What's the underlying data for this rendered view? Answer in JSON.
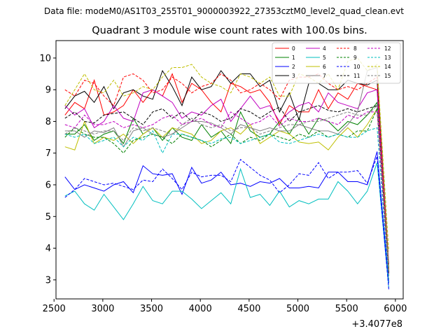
{
  "chart_data": {
    "type": "line",
    "suptitle": "Data file: modeM0/AS1T03_255T01_9000003922_27353cztM0_level2_quad_clean.evt",
    "title": "Quadrant 3 module wise count rates with 100.0s bins.",
    "xlabel": "",
    "ylabel": "",
    "x_offset_label": "+3.4077e8",
    "xlim": [
      2520,
      6080
    ],
    "ylim": [
      2.4,
      10.55
    ],
    "x_ticks": [
      2500,
      3000,
      3500,
      4000,
      4500,
      5000,
      5500,
      6000
    ],
    "y_ticks": [
      3,
      4,
      5,
      6,
      7,
      8,
      9,
      10
    ],
    "x_tick_labels": [
      "2500",
      "3000",
      "3500",
      "4000",
      "4500",
      "5000",
      "5500",
      "6000"
    ],
    "y_tick_labels": [
      "3",
      "4",
      "5",
      "6",
      "7",
      "8",
      "9",
      "10"
    ],
    "legend_position": "top-right",
    "x": [
      2612,
      2712,
      2812,
      2912,
      3012,
      3112,
      3212,
      3312,
      3412,
      3512,
      3612,
      3712,
      3812,
      3912,
      4012,
      4112,
      4212,
      4312,
      4412,
      4512,
      4612,
      4712,
      4812,
      4912,
      5012,
      5112,
      5212,
      5312,
      5412,
      5512,
      5612,
      5712,
      5812,
      5932
    ],
    "series": [
      {
        "name": "0",
        "color": "#ff0000",
        "dash": "solid",
        "values": [
          8.2,
          8.6,
          8.4,
          9.3,
          8.2,
          8.3,
          8.5,
          9.0,
          8.6,
          9.0,
          8.8,
          9.5,
          8.6,
          9.2,
          9.0,
          8.6,
          8.3,
          9.2,
          9.1,
          8.9,
          9.0,
          8.6,
          7.9,
          8.5,
          8.3,
          8.3,
          9.0,
          8.4,
          8.9,
          8.7,
          9.2,
          9.1,
          9.0,
          3.5
        ]
      },
      {
        "name": "1",
        "color": "#008000",
        "dash": "solid",
        "values": [
          7.6,
          7.6,
          7.9,
          7.4,
          7.6,
          7.7,
          7.3,
          8.1,
          7.6,
          7.8,
          7.4,
          7.8,
          7.5,
          7.4,
          7.9,
          7.5,
          7.7,
          7.3,
          8.3,
          7.7,
          7.5,
          7.6,
          8.0,
          7.6,
          8.1,
          7.6,
          8.1,
          8.0,
          7.7,
          8.0,
          7.9,
          8.2,
          8.6,
          3.4
        ]
      },
      {
        "name": "2",
        "color": "#0000ff",
        "dash": "solid",
        "values": [
          6.25,
          5.85,
          6.0,
          5.9,
          5.8,
          6.0,
          6.1,
          5.75,
          6.6,
          6.35,
          6.3,
          6.35,
          5.7,
          6.55,
          6.05,
          6.15,
          6.4,
          6.0,
          6.05,
          5.95,
          6.1,
          6.05,
          6.2,
          5.9,
          5.9,
          5.95,
          5.9,
          6.4,
          6.4,
          6.1,
          6.1,
          6.0,
          7.05,
          2.9
        ]
      },
      {
        "name": "3",
        "color": "#000000",
        "dash": "solid",
        "values": [
          8.4,
          8.8,
          8.95,
          8.6,
          9.1,
          8.4,
          8.9,
          9.0,
          8.8,
          8.7,
          9.6,
          9.1,
          8.5,
          9.4,
          9.0,
          9.1,
          9.6,
          9.2,
          9.5,
          9.5,
          9.1,
          9.3,
          8.3,
          8.9,
          8.05,
          9.2,
          9.2,
          9.0,
          9.0,
          9.3,
          9.2,
          9.15,
          9.3,
          3.3
        ]
      },
      {
        "name": "4",
        "color": "#c000c0",
        "dash": "solid",
        "values": [
          8.5,
          8.2,
          8.4,
          7.8,
          8.0,
          8.5,
          8.1,
          8.0,
          8.9,
          9.0,
          8.8,
          8.6,
          8.1,
          8.3,
          8.2,
          8.5,
          8.7,
          8.0,
          8.4,
          8.8,
          8.4,
          8.5,
          8.0,
          8.3,
          8.5,
          8.6,
          8.3,
          8.9,
          8.6,
          8.5,
          8.4,
          8.9,
          9.0,
          3.2
        ]
      },
      {
        "name": "5",
        "color": "#00bfbf",
        "dash": "solid",
        "values": [
          5.65,
          5.8,
          5.4,
          5.2,
          5.7,
          5.3,
          4.9,
          5.4,
          5.95,
          5.5,
          5.4,
          5.8,
          5.8,
          5.55,
          5.25,
          5.5,
          5.75,
          5.4,
          6.5,
          5.6,
          5.7,
          5.35,
          5.8,
          5.3,
          5.5,
          5.4,
          5.55,
          5.55,
          6.1,
          5.8,
          5.4,
          5.8,
          6.7,
          2.75
        ]
      },
      {
        "name": "6",
        "color": "#bfbf00",
        "dash": "solid",
        "values": [
          7.2,
          7.1,
          8.0,
          7.3,
          7.5,
          7.4,
          7.6,
          7.3,
          7.6,
          7.8,
          7.5,
          7.8,
          7.7,
          7.6,
          7.3,
          7.4,
          7.7,
          7.8,
          7.6,
          7.9,
          7.3,
          7.5,
          7.7,
          7.6,
          7.35,
          7.3,
          7.35,
          7.1,
          7.5,
          7.8,
          7.5,
          7.9,
          8.4,
          3.35
        ]
      },
      {
        "name": "7",
        "color": "#808080",
        "dash": "solid",
        "values": [
          7.7,
          7.7,
          7.5,
          7.7,
          7.65,
          7.8,
          7.2,
          7.7,
          7.8,
          7.6,
          7.5,
          7.6,
          7.8,
          8.0,
          8.0,
          7.95,
          7.8,
          7.6,
          7.9,
          7.8,
          7.7,
          7.8,
          7.7,
          7.7,
          7.9,
          7.8,
          7.7,
          7.7,
          7.6,
          7.9,
          8.3,
          9.6,
          9.7,
          3.5
        ]
      },
      {
        "name": "8",
        "color": "#ff0000",
        "dash": "dashed",
        "values": [
          9.0,
          8.8,
          9.3,
          9.2,
          8.8,
          8.5,
          9.4,
          9.5,
          9.3,
          8.9,
          9.0,
          9.4,
          9.2,
          8.9,
          9.1,
          9.2,
          9.5,
          9.3,
          8.9,
          9.0,
          9.2,
          9.0,
          8.7,
          9.3,
          9.4,
          9.4,
          9.5,
          9.2,
          9.0,
          9.1,
          9.0,
          9.2,
          9.4,
          3.3
        ]
      },
      {
        "name": "9",
        "color": "#008000",
        "dash": "dashed",
        "values": [
          7.5,
          7.8,
          7.6,
          7.5,
          7.5,
          7.3,
          7.0,
          7.4,
          7.5,
          7.6,
          7.5,
          7.3,
          7.6,
          7.5,
          7.4,
          7.2,
          7.4,
          7.6,
          7.3,
          7.5,
          7.4,
          7.6,
          7.5,
          7.4,
          7.6,
          7.5,
          7.7,
          7.5,
          7.6,
          7.5,
          7.7,
          7.7,
          8.4,
          3.1
        ]
      },
      {
        "name": "10",
        "color": "#0000ff",
        "dash": "dashed",
        "values": [
          5.6,
          5.85,
          6.2,
          6.1,
          6.0,
          6.05,
          5.95,
          5.85,
          6.15,
          6.1,
          6.5,
          6.2,
          5.85,
          6.4,
          6.25,
          6.3,
          6.3,
          6.1,
          6.8,
          6.55,
          6.3,
          6.15,
          5.75,
          6.0,
          6.35,
          6.3,
          6.7,
          6.2,
          6.4,
          6.4,
          6.45,
          6.05,
          6.9,
          2.7
        ]
      },
      {
        "name": "11",
        "color": "#000000",
        "dash": "dashed",
        "values": [
          8.1,
          8.3,
          8.0,
          7.95,
          8.2,
          8.25,
          8.3,
          8.1,
          7.9,
          8.3,
          8.4,
          8.1,
          8.3,
          8.0,
          8.3,
          8.2,
          8.0,
          8.1,
          8.4,
          8.3,
          8.1,
          8.3,
          8.45,
          8.0,
          8.3,
          8.4,
          8.5,
          8.35,
          8.3,
          8.4,
          8.3,
          8.4,
          8.5,
          3.2
        ]
      },
      {
        "name": "12",
        "color": "#c000c0",
        "dash": "dashed",
        "values": [
          7.9,
          7.8,
          8.2,
          7.9,
          7.9,
          8.0,
          7.8,
          7.9,
          7.8,
          7.9,
          8.1,
          8.2,
          7.9,
          8.0,
          8.1,
          7.9,
          7.8,
          8.3,
          8.1,
          7.9,
          8.0,
          8.2,
          7.85,
          8.1,
          8.0,
          8.0,
          8.1,
          8.0,
          7.9,
          8.2,
          8.1,
          8.3,
          8.3,
          3.0
        ]
      },
      {
        "name": "13",
        "color": "#00bfbf",
        "dash": "dashed",
        "values": [
          7.6,
          7.5,
          7.6,
          7.3,
          7.4,
          7.5,
          7.2,
          7.5,
          7.4,
          7.7,
          7.0,
          7.6,
          7.6,
          7.5,
          7.4,
          7.3,
          7.45,
          7.5,
          7.3,
          7.4,
          7.5,
          7.6,
          7.35,
          7.3,
          7.4,
          7.5,
          7.6,
          7.5,
          7.6,
          7.5,
          7.5,
          7.7,
          7.8,
          3.0
        ]
      },
      {
        "name": "14",
        "color": "#bfbf00",
        "dash": "dashed",
        "values": [
          8.5,
          9.0,
          9.5,
          9.0,
          8.9,
          9.3,
          8.8,
          8.9,
          9.1,
          9.0,
          9.4,
          9.7,
          9.7,
          9.8,
          9.4,
          9.2,
          9.1,
          8.9,
          9.5,
          9.4,
          9.2,
          9.4,
          8.8,
          8.8,
          9.5,
          9.4,
          9.2,
          9.5,
          9.0,
          9.9,
          10.0,
          9.6,
          9.8,
          3.9
        ]
      },
      {
        "name": "15",
        "color": "#808080",
        "dash": "dashed",
        "values": [
          7.6,
          7.8,
          7.7,
          7.6,
          7.7,
          7.7,
          7.4,
          7.8,
          7.7,
          7.8,
          7.7,
          7.6,
          7.9,
          8.1,
          7.9,
          7.8,
          7.9,
          7.7,
          7.8,
          7.8,
          7.6,
          7.7,
          7.8,
          7.9,
          7.9,
          8.0,
          8.0,
          8.1,
          8.2,
          8.3,
          8.2,
          8.2,
          8.5,
          3.3
        ]
      }
    ]
  }
}
